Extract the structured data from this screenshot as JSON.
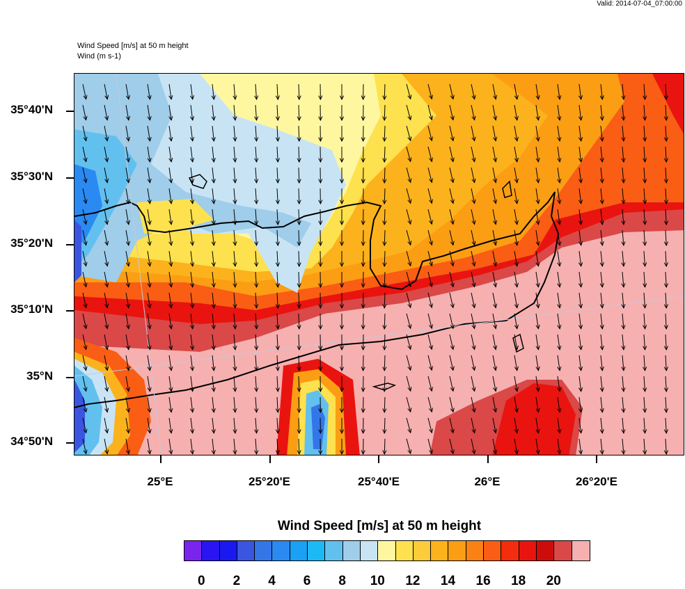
{
  "header": {
    "valid": "Valid: 2014-07-04_07:00:00",
    "field_title": "Wind Speed [m/s] at 50 m height",
    "vector_title": "Wind   (m s-1)"
  },
  "map": {
    "region": "Crete, Greece",
    "lat_labels": [
      "35°40'N",
      "35°30'N",
      "35°20'N",
      "35°10'N",
      "35°N",
      "34°50'N"
    ],
    "lon_labels": [
      "25°E",
      "25°20'E",
      "25°40'E",
      "26°E",
      "26°20'E"
    ],
    "arrow_direction": "south-southeast"
  },
  "colorbar": {
    "title": "Wind Speed [m/s] at 50 m height",
    "colors": [
      "#7b24ed",
      "#2b14f2",
      "#1a1af0",
      "#3a56e0",
      "#3476e8",
      "#2a8af2",
      "#1aa0f5",
      "#1bbaf5",
      "#62c0ef",
      "#9fcdea",
      "#c8e4f4",
      "#fef7a0",
      "#fde14e",
      "#fccc3a",
      "#fcb21c",
      "#fb9e14",
      "#fa8214",
      "#f95e14",
      "#f52d0f",
      "#e9140f",
      "#cf0c0c",
      "#da4848",
      "#f6b0b0"
    ],
    "labels": [
      "0",
      "2",
      "4",
      "6",
      "8",
      "10",
      "12",
      "14",
      "16",
      "18",
      "20"
    ]
  }
}
